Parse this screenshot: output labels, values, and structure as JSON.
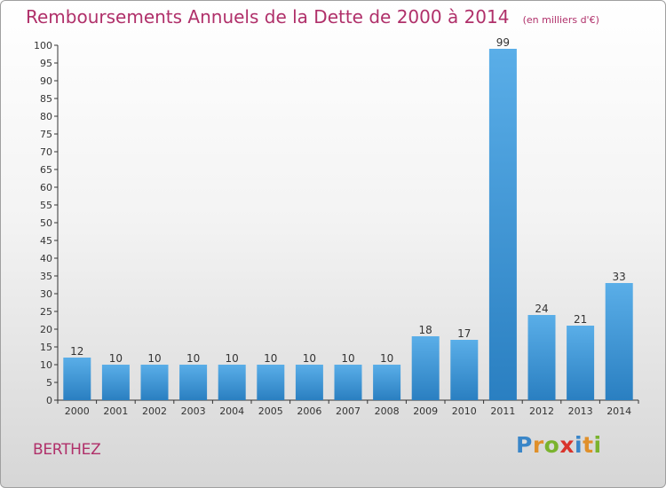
{
  "header": {
    "title": "Remboursements Annuels de la Dette de 2000 à 2014",
    "unit": "(en milliers d'€)"
  },
  "footer": {
    "commune": "BERTHEZ",
    "logo_text": "Proxiti"
  },
  "colors": {
    "title": "#b0306a",
    "bar_light": "#5aaee8",
    "bar_dark": "#2a7fc1",
    "axis": "#333333",
    "grid": "#bdbdbd"
  },
  "chart_data": {
    "type": "bar",
    "categories": [
      "2000",
      "2001",
      "2002",
      "2003",
      "2004",
      "2005",
      "2006",
      "2007",
      "2008",
      "2009",
      "2010",
      "2011",
      "2012",
      "2013",
      "2014"
    ],
    "values": [
      12,
      10,
      10,
      10,
      10,
      10,
      10,
      10,
      10,
      18,
      17,
      99,
      24,
      21,
      33
    ],
    "ylim": [
      0,
      100
    ],
    "ytick_step": 5,
    "grid": false
  }
}
